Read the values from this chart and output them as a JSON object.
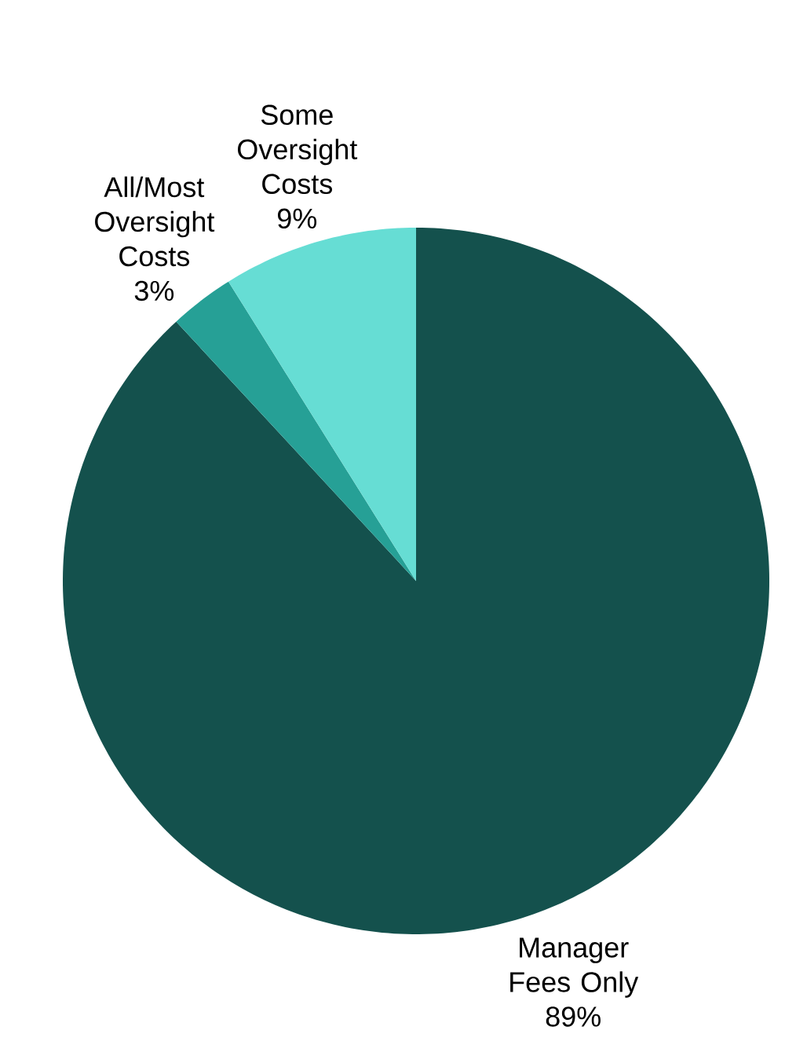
{
  "chart_data": {
    "type": "pie",
    "categories": [
      "Manager Fees Only",
      "All/Most Oversight Costs",
      "Some Oversight Costs"
    ],
    "values": [
      89,
      3,
      9
    ],
    "value_labels": [
      "89%",
      "3%",
      "9%"
    ],
    "colors": [
      "#14514d",
      "#26a096",
      "#66ddd4"
    ]
  }
}
